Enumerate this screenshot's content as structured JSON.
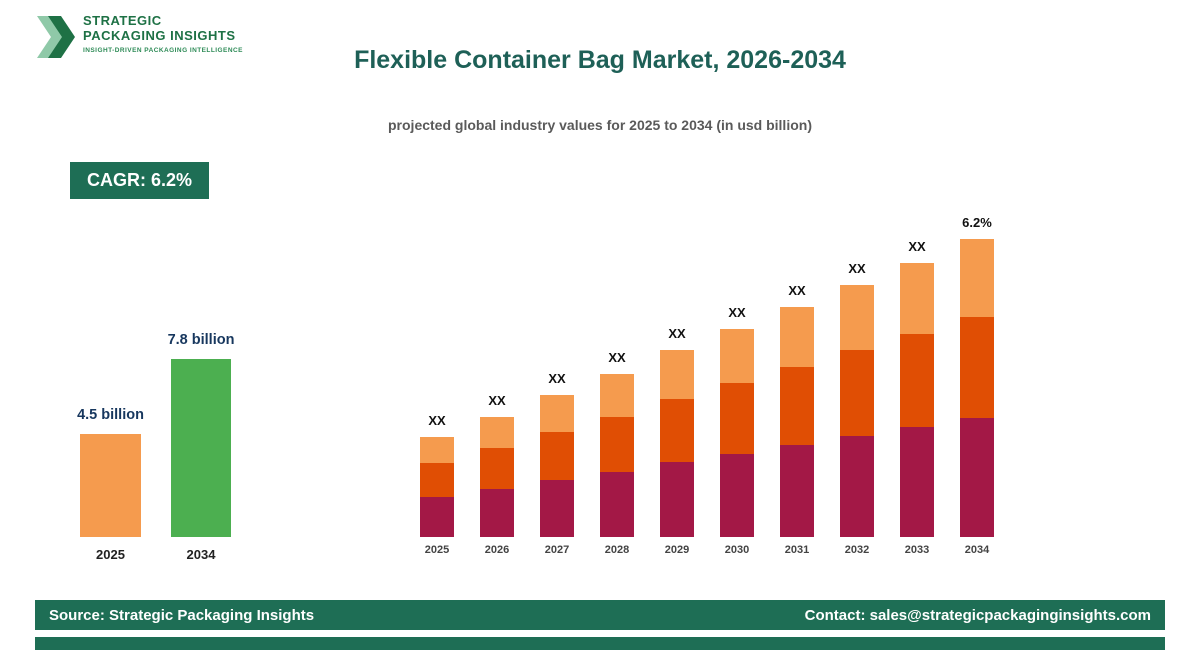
{
  "logo": {
    "line1": "STRATEGIC",
    "line2": "PACKAGING INSIGHTS",
    "tagline": "INSIGHT-DRIVEN PACKAGING INTELLIGENCE"
  },
  "header": {
    "title": "Flexible Container Bag Market, 2026-2034",
    "subtitle": "projected global industry values for 2025 to 2034 (in usd billion)"
  },
  "cagr_badge": "CAGR: 6.2%",
  "colors": {
    "brand_green": "#1E7145",
    "dark_green": "#1E6E55",
    "title_green": "#1E6057",
    "maroon": "#A31846",
    "dark_orange": "#E04E04",
    "light_orange": "#F59B4E",
    "mini_green": "#4CAF50",
    "value_label_navy": "#17375E"
  },
  "mini_chart": {
    "type": "bar",
    "title": "",
    "unit": "usd billion",
    "bars": [
      {
        "label": "2025",
        "value": 4.5,
        "value_label": "4.5 billion",
        "color": "#F59B4E"
      },
      {
        "label": "2034",
        "value": 7.8,
        "value_label": "7.8 billion",
        "color": "#4CAF50"
      }
    ]
  },
  "chart_data": {
    "type": "bar",
    "subtype": "stacked",
    "title": "Flexible Container Bag Market, 2026-2034",
    "xlabel": "",
    "ylabel": "",
    "note": "segment values are relative (actual figures masked as XX in the infographic)",
    "categories": [
      "2025",
      "2026",
      "2027",
      "2028",
      "2029",
      "2030",
      "2031",
      "2032",
      "2033",
      "2034"
    ],
    "series": [
      {
        "name": "bottom",
        "color": "#A31846",
        "values": [
          40,
          48,
          57,
          65,
          75,
          83,
          92,
          101,
          110,
          119
        ]
      },
      {
        "name": "middle",
        "color": "#E04E04",
        "values": [
          34,
          41,
          48,
          55,
          63,
          71,
          78,
          86,
          93,
          101
        ]
      },
      {
        "name": "top",
        "color": "#F59B4E",
        "values": [
          26,
          31,
          37,
          43,
          49,
          54,
          60,
          65,
          71,
          78
        ]
      }
    ],
    "bar_labels": [
      "XX",
      "XX",
      "XX",
      "XX",
      "XX",
      "XX",
      "XX",
      "XX",
      "XX",
      "6.2%"
    ],
    "legend": false,
    "grid": false
  },
  "footer": {
    "source": "Source: Strategic Packaging Insights",
    "contact": "Contact: sales@strategicpackaginginsights.com"
  }
}
